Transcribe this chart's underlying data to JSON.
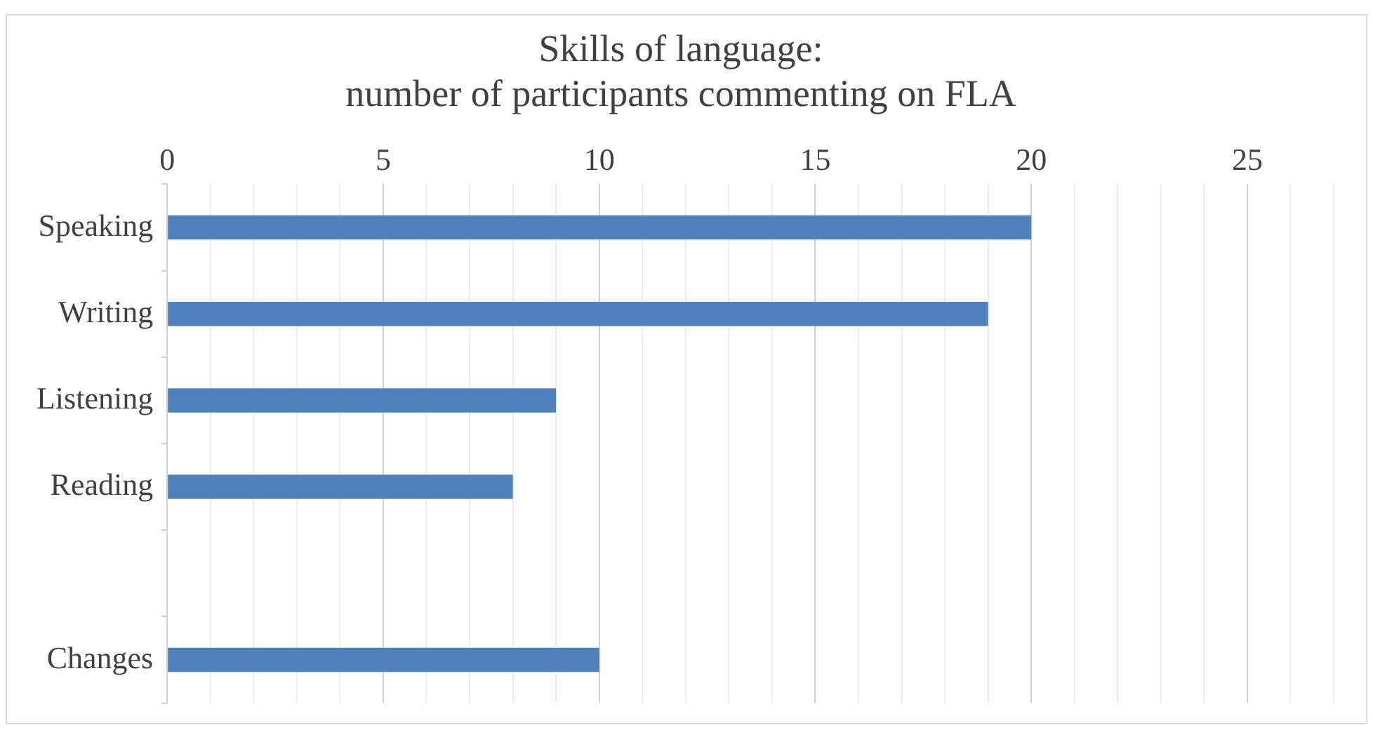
{
  "chart_data": {
    "type": "bar",
    "orientation": "horizontal",
    "title": "Skills of language:\nnumber of participants commenting on FLA",
    "categories": [
      "Speaking",
      "Writing",
      "Listening",
      "Reading",
      null,
      "Changes"
    ],
    "values": [
      20,
      19,
      9,
      8,
      null,
      10
    ],
    "color": "#4f81bd",
    "xlim": [
      0,
      27
    ],
    "xticks": [
      0,
      {
        "value": 1,
        "label": null
      },
      {
        "value": 2,
        "label": null
      },
      {
        "value": 3,
        "label": null
      },
      {
        "value": 4,
        "label": null
      },
      5,
      {
        "value": 6,
        "label": null
      },
      {
        "value": 7,
        "label": null
      },
      {
        "value": 8,
        "label": null
      },
      {
        "value": 9,
        "label": null
      },
      10,
      {
        "value": 11,
        "label": null
      },
      {
        "value": 12,
        "label": null
      },
      {
        "value": 13,
        "label": null
      },
      {
        "value": 14,
        "label": null
      },
      15,
      {
        "value": 16,
        "label": null
      },
      {
        "value": 17,
        "label": null
      },
      {
        "value": 18,
        "label": null
      },
      {
        "value": 19,
        "label": null
      },
      20,
      {
        "value": 21,
        "label": null
      },
      {
        "value": 22,
        "label": null
      },
      {
        "value": 23,
        "label": null
      },
      {
        "value": 24,
        "label": null
      },
      25,
      {
        "value": 26,
        "label": null
      },
      {
        "value": 27,
        "label": null
      }
    ],
    "grid": "x",
    "legend": false
  }
}
